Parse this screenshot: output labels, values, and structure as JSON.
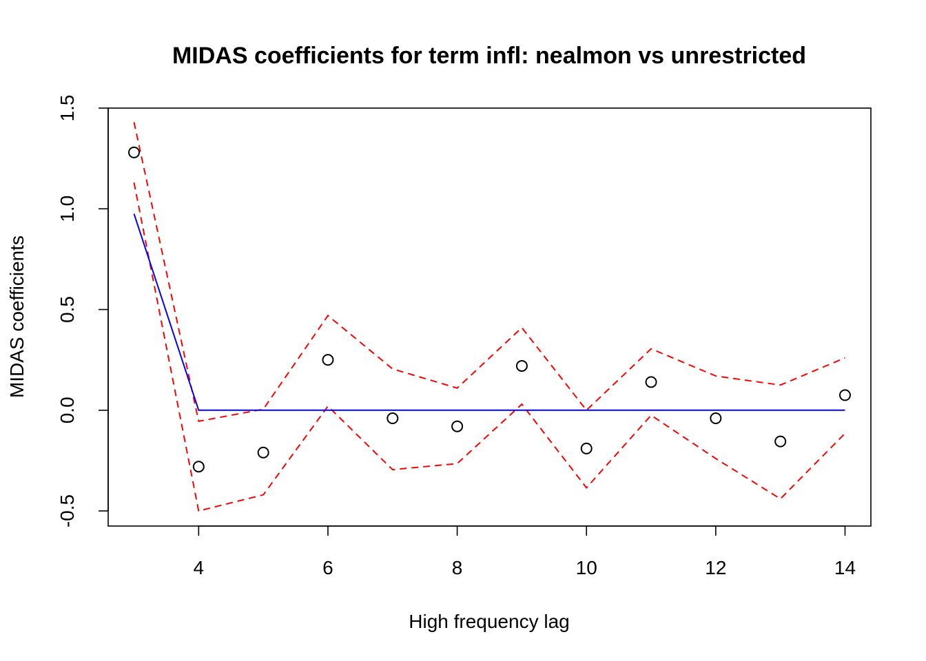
{
  "chart_data": {
    "type": "line",
    "title": "MIDAS coefficients for term infl: nealmon vs unrestricted",
    "xlabel": "High frequency lag",
    "ylabel": "MIDAS coefficients",
    "xlim": [
      2.6,
      14.4
    ],
    "ylim": [
      -0.575,
      1.5
    ],
    "xticks": [
      4,
      6,
      8,
      10,
      12,
      14
    ],
    "xtick_labels": [
      "4",
      "6",
      "8",
      "10",
      "12",
      "14"
    ],
    "yticks": [
      -0.5,
      0.0,
      0.5,
      1.0,
      1.5
    ],
    "ytick_labels": [
      "-0.5",
      "0.0",
      "0.5",
      "1.0",
      "1.5"
    ],
    "grid": false,
    "x": [
      3,
      4,
      5,
      6,
      7,
      8,
      9,
      10,
      11,
      12,
      13,
      14
    ],
    "series": [
      {
        "style": "points",
        "marker": "open-circle",
        "color": "#000000",
        "values": [
          1.28,
          -0.28,
          -0.21,
          0.25,
          -0.04,
          -0.08,
          0.22,
          -0.19,
          0.14,
          -0.04,
          -0.155,
          0.075
        ]
      },
      {
        "style": "solid-line",
        "color": "#0000ff",
        "values": [
          0.975,
          0.0,
          0.0,
          0.0,
          0.0,
          0.0,
          0.0,
          0.0,
          0.0,
          0.0,
          0.0,
          0.0
        ]
      },
      {
        "style": "dashed-line",
        "color": "#ff0000",
        "values": [
          1.43,
          -0.055,
          0.005,
          0.47,
          0.205,
          0.11,
          0.41,
          0.0,
          0.305,
          0.17,
          0.125,
          0.26
        ]
      },
      {
        "style": "dashed-line",
        "color": "#ff0000",
        "values": [
          1.13,
          -0.5,
          -0.42,
          0.02,
          -0.295,
          -0.265,
          0.03,
          -0.385,
          -0.025,
          -0.24,
          -0.44,
          -0.115
        ]
      }
    ]
  }
}
